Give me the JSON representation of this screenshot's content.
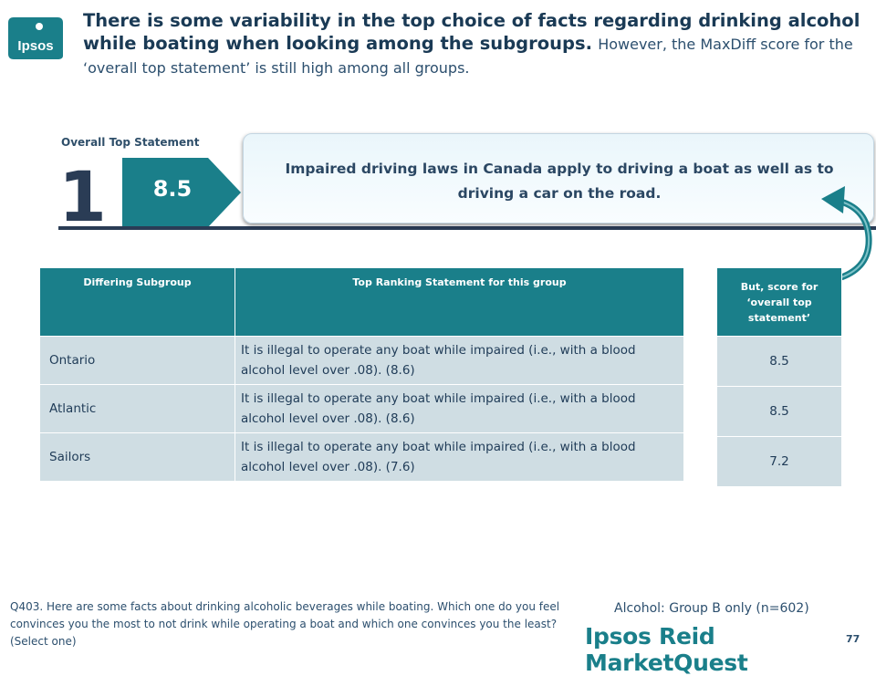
{
  "logo": {
    "text": "Ipsos",
    "color": "#1a7f8a"
  },
  "title": {
    "bold": "There is some variability in the top choice of facts regarding drinking alcohol while boating when looking among the subgroups.",
    "regular": "However, the MaxDiff score for the ‘overall top statement’ is still high among all groups."
  },
  "overall": {
    "label": "Overall Top Statement",
    "rank": "1",
    "score": "8.5",
    "statement": "Impaired driving laws in Canada apply to driving a boat as well as to driving a car on the road."
  },
  "table": {
    "headers": [
      "Differing Subgroup",
      "Top Ranking Statement for this group"
    ],
    "rows": [
      {
        "subgroup": "Ontario",
        "statement": "It is illegal to operate any boat while impaired (i.e., with a blood alcohol level over .08). (8.6)"
      },
      {
        "subgroup": "Atlantic",
        "statement": "It is illegal to operate any boat while impaired (i.e., with a blood alcohol level over .08). (8.6)"
      },
      {
        "subgroup": "Sailors",
        "statement": "It is illegal to operate any boat while impaired (i.e., with a blood alcohol level over .08). (7.6)"
      }
    ]
  },
  "side": {
    "header": "But, score for ‘overall top statement’",
    "values": [
      "8.5",
      "8.5",
      "7.2"
    ]
  },
  "footer": {
    "question": "Q403. Here are some facts about drinking alcoholic beverages while boating. Which one do you feel convinces you the most to not drink while operating a boat and which one convinces you the least? (Select one)",
    "group": "Alcohol: Group B only (n=602)",
    "brand": "Ipsos Reid MarketQuest",
    "page": "77"
  },
  "colors": {
    "teal": "#1a7f8a",
    "navy": "#2a3c55",
    "cell": "#cfdde3"
  }
}
